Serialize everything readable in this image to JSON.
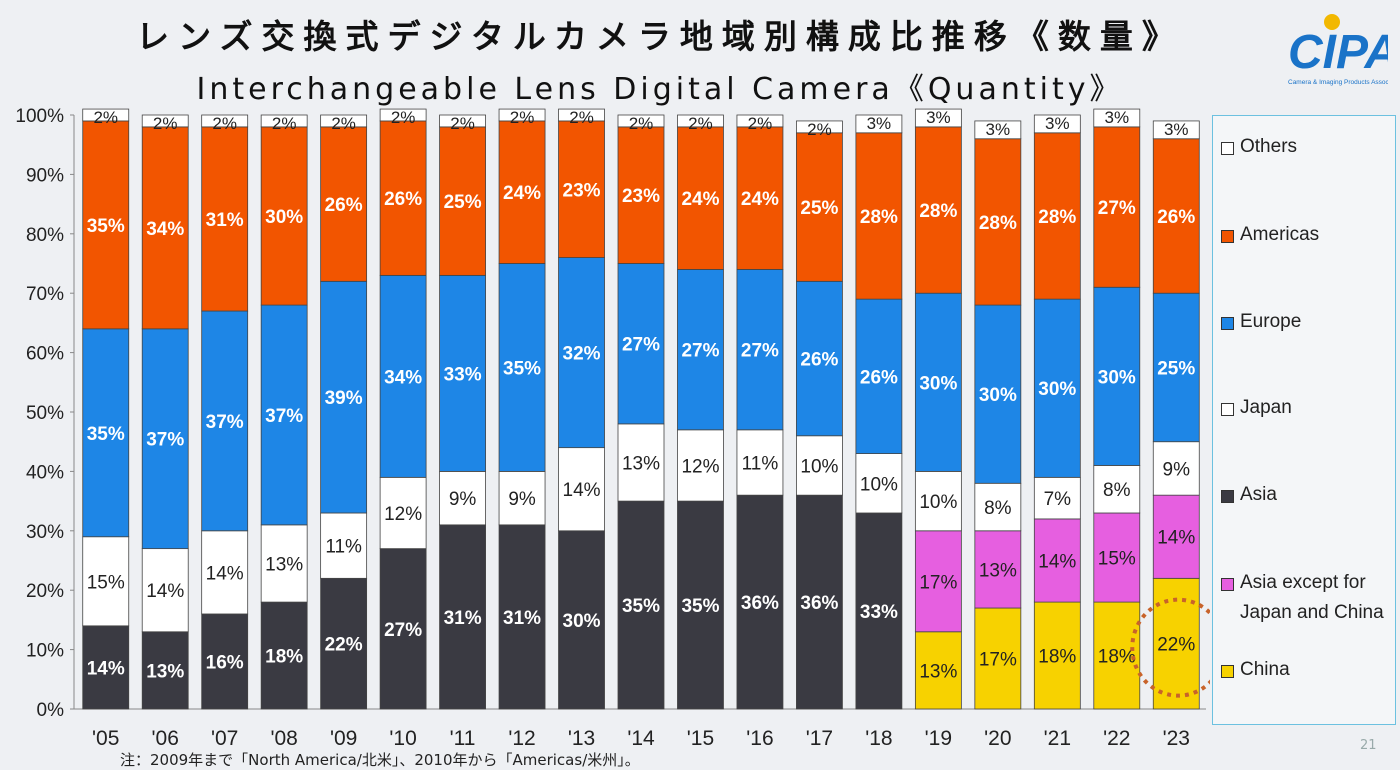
{
  "title_jp": "レンズ交換式デジタルカメラ地域別構成比推移《数量》",
  "title_en": "Interchangeable Lens Digital Camera《Quantity》",
  "logo_text": "CIPA",
  "logo_subtext": "Camera & Imaging Products Association",
  "footnote": "注：2009年まで「North America/北米」、2010年から「Americas/米州」。",
  "page_number": "21",
  "colors": {
    "China": "#f7d200",
    "Asia except for Japan and China": "#e65fe0",
    "Asia": "#3a3a42",
    "Japan": "#ffffff",
    "Europe": "#1e86e6",
    "Americas": "#f25500",
    "Others": "#ffffff",
    "highlight": "#c8632a"
  },
  "chart_data": {
    "type": "bar",
    "stacked": true,
    "ylim": [
      0,
      100
    ],
    "y_ticks": [
      "0%",
      "10%",
      "20%",
      "30%",
      "40%",
      "50%",
      "60%",
      "70%",
      "80%",
      "90%",
      "100%"
    ],
    "categories": [
      "'05",
      "'06",
      "'07",
      "'08",
      "'09",
      "'10",
      "'11",
      "'12",
      "'13",
      "'14",
      "'15",
      "'16",
      "'17",
      "'18",
      "'19",
      "'20",
      "'21",
      "'22",
      "'23"
    ],
    "series": [
      {
        "name": "China",
        "values": [
          null,
          null,
          null,
          null,
          null,
          null,
          null,
          null,
          null,
          null,
          null,
          null,
          null,
          null,
          13,
          17,
          18,
          18,
          22
        ]
      },
      {
        "name": "Asia except for Japan and China",
        "values": [
          null,
          null,
          null,
          null,
          null,
          null,
          null,
          null,
          null,
          null,
          null,
          null,
          null,
          null,
          17,
          13,
          14,
          15,
          14
        ]
      },
      {
        "name": "Asia",
        "values": [
          14,
          13,
          16,
          18,
          22,
          27,
          31,
          31,
          30,
          35,
          35,
          36,
          36,
          33,
          null,
          null,
          null,
          null,
          null
        ]
      },
      {
        "name": "Japan",
        "values": [
          15,
          14,
          14,
          13,
          11,
          12,
          9,
          9,
          14,
          13,
          12,
          11,
          10,
          10,
          10,
          8,
          7,
          8,
          9
        ]
      },
      {
        "name": "Europe",
        "values": [
          35,
          37,
          37,
          37,
          39,
          34,
          33,
          35,
          32,
          27,
          27,
          27,
          26,
          26,
          30,
          30,
          30,
          30,
          25
        ]
      },
      {
        "name": "Americas",
        "values": [
          35,
          34,
          31,
          30,
          26,
          26,
          25,
          24,
          23,
          23,
          24,
          24,
          25,
          28,
          28,
          28,
          28,
          27,
          26
        ]
      },
      {
        "name": "Others",
        "values": [
          2,
          2,
          2,
          2,
          2,
          2,
          2,
          2,
          2,
          2,
          2,
          2,
          2,
          3,
          3,
          3,
          3,
          3,
          3
        ]
      }
    ],
    "legend": [
      "Others",
      "Americas",
      "Europe",
      "Japan",
      "Asia",
      "Asia except for Japan and China",
      "China"
    ],
    "legend_position": "right",
    "highlight": {
      "category": "'23",
      "series": "China",
      "style": "dashed circle"
    }
  }
}
